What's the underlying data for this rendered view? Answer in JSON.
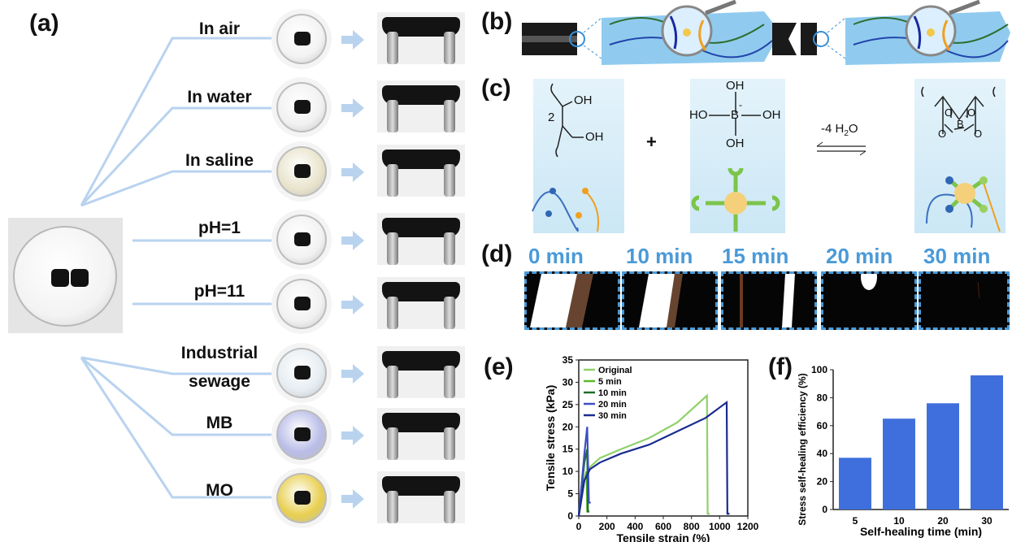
{
  "panels": {
    "a": "(a)",
    "b": "(b)",
    "c": "(c)",
    "d": "(d)",
    "e": "(e)",
    "f": "(f)"
  },
  "conditions": [
    "In air",
    "In water",
    "In saline",
    "pH=1",
    "pH=11",
    "Industrial",
    "sewage",
    "MB",
    "MO"
  ],
  "dish_colors": [
    "#f3f3f3",
    "#f1f1f1",
    "#e9e4cc",
    "#f2f2f2",
    "#f1f1f1",
    "#e6edf2",
    "#b9bde8",
    "#e8cf4f"
  ],
  "chemistry": {
    "multiplier": "2",
    "oh": "OH",
    "plus": "+",
    "ho": "HO",
    "boron": "B",
    "charge": "-",
    "water": "-4 H",
    "sub2": "2",
    "water_tail": "O",
    "o": "O"
  },
  "timelapse": [
    "0 min",
    "10 min",
    "15 min",
    "20 min",
    "30 min"
  ],
  "chart_data": [
    {
      "type": "line",
      "xlabel": "Tensile strain (%)",
      "ylabel": "Tensile stress (kPa)",
      "xlim": [
        0,
        1200
      ],
      "ylim": [
        0,
        35
      ],
      "xticks": [
        "0",
        "200",
        "400",
        "600",
        "800",
        "1000",
        "1200"
      ],
      "yticks": [
        "0",
        "5",
        "10",
        "15",
        "20",
        "25",
        "30",
        "35"
      ],
      "legend_position": "top-left",
      "series": [
        {
          "name": "Original",
          "color": "#8fd16a",
          "x": [
            0,
            40,
            80,
            150,
            300,
            500,
            700,
            910,
            915,
            930
          ],
          "y": [
            0,
            8,
            11,
            13,
            15,
            17.5,
            21,
            27,
            0.5,
            0.5
          ]
        },
        {
          "name": "5 min",
          "color": "#5cb82a",
          "x": [
            0,
            20,
            40,
            55,
            60,
            70
          ],
          "y": [
            0,
            4,
            8,
            10,
            1,
            1
          ]
        },
        {
          "name": "10 min",
          "color": "#1f6e2a",
          "x": [
            0,
            20,
            40,
            60,
            65,
            75
          ],
          "y": [
            0,
            6,
            12,
            15,
            1,
            1
          ]
        },
        {
          "name": "20 min",
          "color": "#3b4fc0",
          "x": [
            0,
            20,
            40,
            60,
            72,
            78,
            85
          ],
          "y": [
            0,
            7,
            14,
            20,
            3,
            3,
            3
          ]
        },
        {
          "name": "30 min",
          "color": "#1a2c8f",
          "x": [
            0,
            40,
            80,
            150,
            300,
            500,
            700,
            900,
            1050,
            1055,
            1070
          ],
          "y": [
            0,
            8,
            10.5,
            12,
            14,
            16,
            19,
            22,
            25.5,
            0.5,
            0.5
          ]
        }
      ]
    },
    {
      "type": "bar",
      "xlabel": "Self-healing time (min)",
      "ylabel": "Stress self-healing efficiency (%)",
      "categories": [
        "5",
        "10",
        "20",
        "30"
      ],
      "values": [
        37,
        65,
        76,
        96
      ],
      "ylim": [
        0,
        100
      ],
      "yticks": [
        "0",
        "20",
        "40",
        "60",
        "80",
        "100"
      ],
      "bar_color": "#3f6fdc"
    }
  ]
}
